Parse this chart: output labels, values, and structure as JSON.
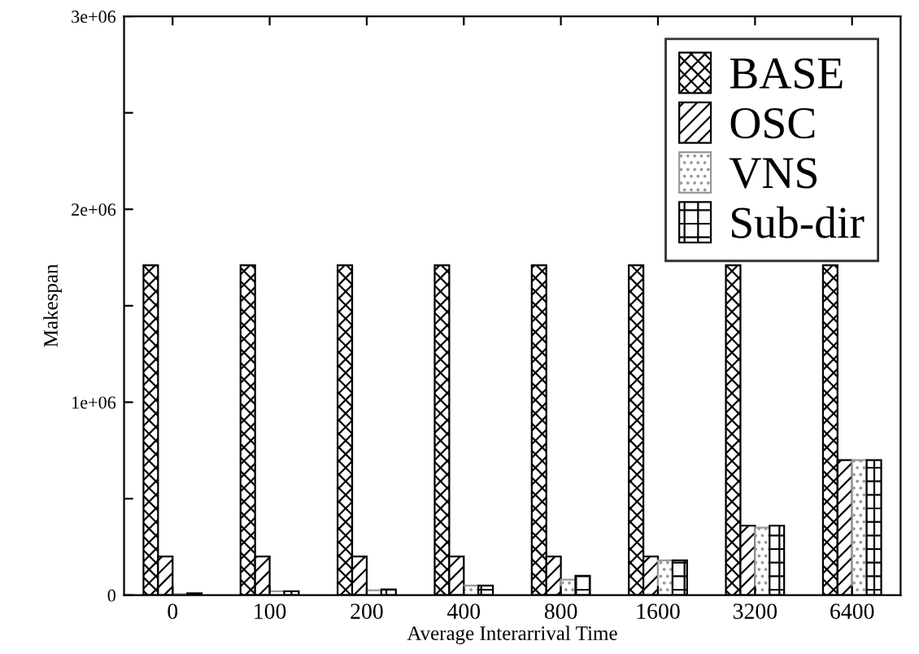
{
  "chart_data": {
    "type": "bar",
    "xlabel": "Average Interarrival Time",
    "ylabel": "Makespan",
    "categories": [
      "0",
      "100",
      "200",
      "400",
      "800",
      "1600",
      "3200",
      "6400"
    ],
    "series": [
      {
        "name": "BASE",
        "color": "#000000",
        "values": [
          1710000,
          1710000,
          1710000,
          1710000,
          1710000,
          1710000,
          1710000,
          1710000
        ]
      },
      {
        "name": "OSC",
        "color": "#000000",
        "values": [
          200000,
          200000,
          200000,
          200000,
          200000,
          200000,
          360000,
          700000
        ]
      },
      {
        "name": "VNS",
        "color": "#999999",
        "values": [
          5000,
          20000,
          25000,
          50000,
          80000,
          180000,
          350000,
          700000
        ]
      },
      {
        "name": "Sub-dir",
        "color": "#000000",
        "values": [
          10000,
          20000,
          30000,
          50000,
          100000,
          180000,
          360000,
          700000
        ]
      }
    ],
    "ylim": [
      0,
      3000000
    ],
    "yticks": [
      0,
      {
        "value": 500000,
        "label": null
      },
      {
        "value": 1000000,
        "label": "1e+06"
      },
      {
        "value": 1500000,
        "label": null
      },
      {
        "value": 2000000,
        "label": "2e+06"
      },
      {
        "value": 2500000,
        "label": null
      },
      {
        "value": 3000000,
        "label": "3e+06"
      }
    ],
    "grid": false,
    "legend": "top right"
  }
}
